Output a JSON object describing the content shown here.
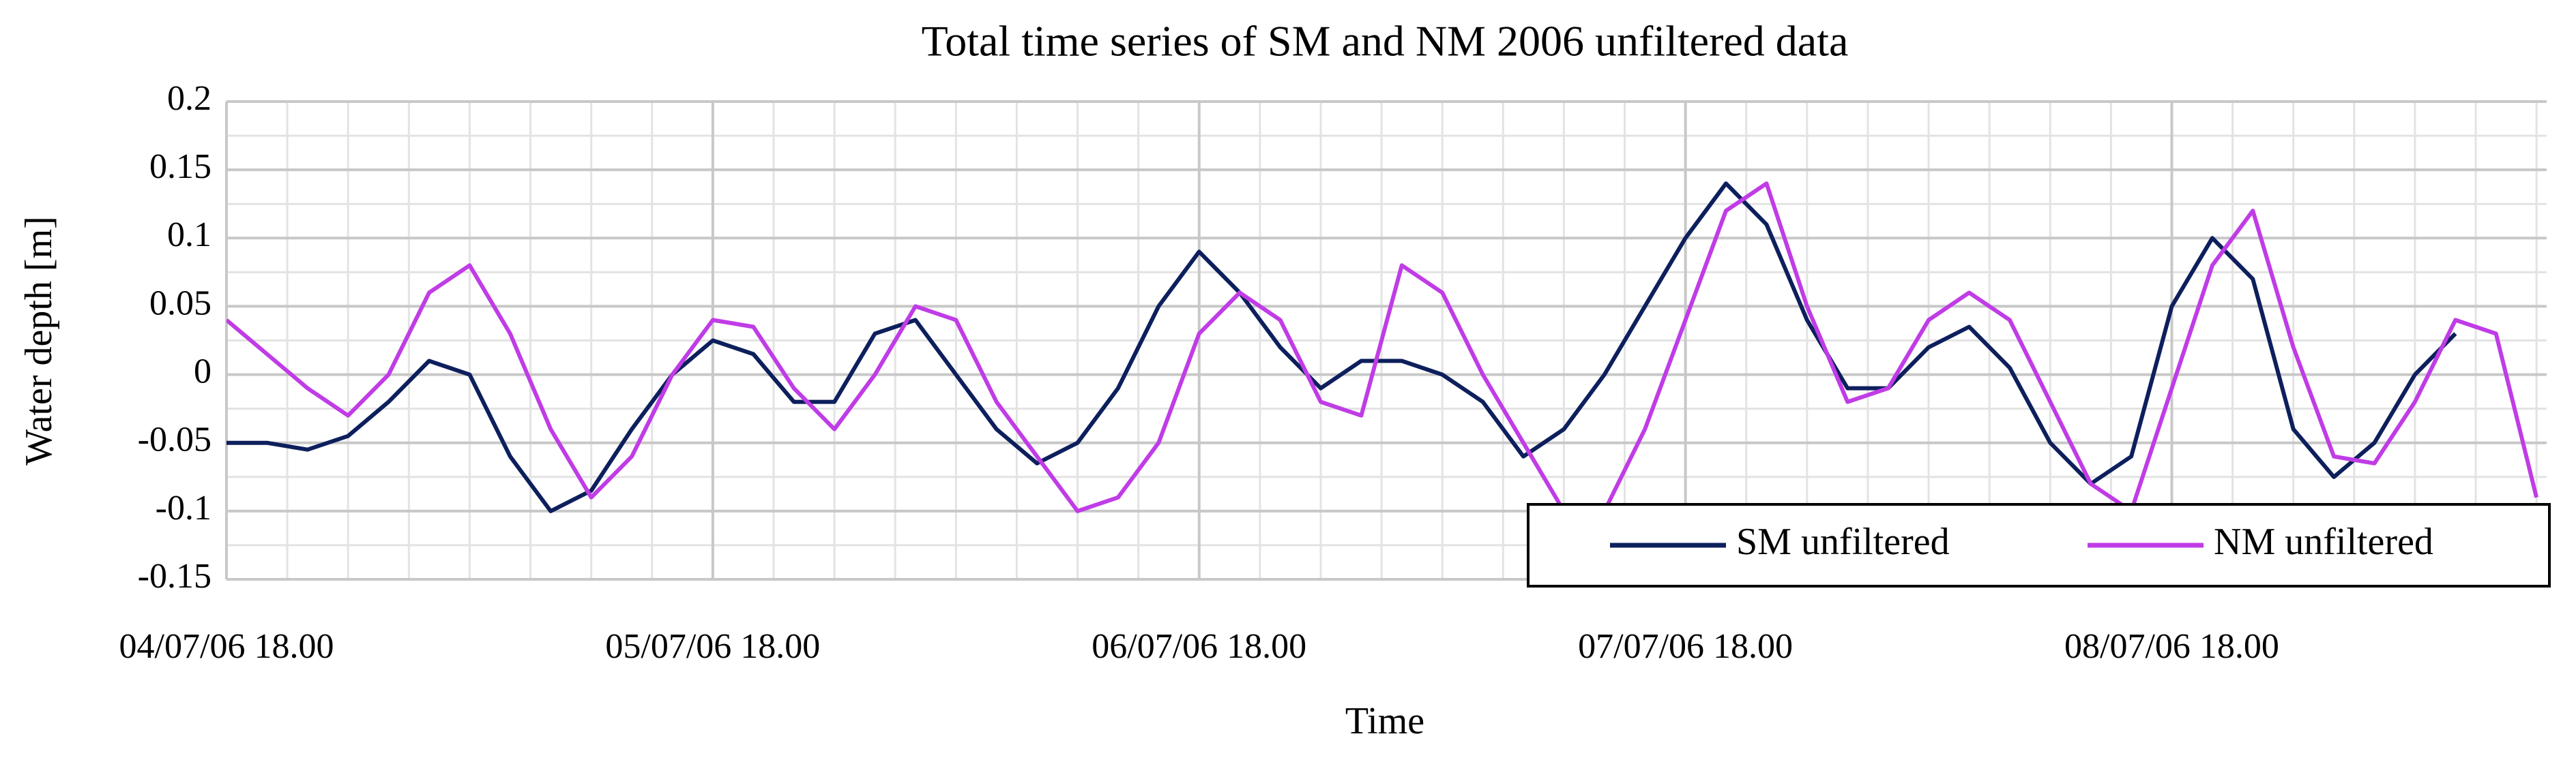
{
  "chart_data": {
    "type": "line",
    "title": "Total time series of SM and NM 2006 unfiltered data",
    "x_label": "Time",
    "y_label": "Water depth [m]",
    "x": [
      "04/07/06 18.00",
      "04/07/06 20.00",
      "04/07/06 22.00",
      "05/07/06 00.00",
      "05/07/06 02.00",
      "05/07/06 04.00",
      "05/07/06 06.00",
      "05/07/06 08.00",
      "05/07/06 10.00",
      "05/07/06 12.00",
      "05/07/06 14.00",
      "05/07/06 16.00",
      "05/07/06 18.00",
      "05/07/06 20.00",
      "05/07/06 22.00",
      "06/07/06 00.00",
      "06/07/06 02.00",
      "06/07/06 04.00",
      "06/07/06 06.00",
      "06/07/06 08.00",
      "06/07/06 10.00",
      "06/07/06 12.00",
      "06/07/06 14.00",
      "06/07/06 16.00",
      "06/07/06 18.00",
      "06/07/06 20.00",
      "06/07/06 22.00",
      "07/07/06 00.00",
      "07/07/06 02.00",
      "07/07/06 04.00",
      "07/07/06 06.00",
      "07/07/06 08.00",
      "07/07/06 10.00",
      "07/07/06 12.00",
      "07/07/06 14.00",
      "07/07/06 16.00",
      "07/07/06 18.00",
      "07/07/06 20.00",
      "07/07/06 22.00",
      "08/07/06 00.00",
      "08/07/06 02.00",
      "08/07/06 04.00",
      "08/07/06 06.00",
      "08/07/06 08.00",
      "08/07/06 10.00",
      "08/07/06 12.00",
      "08/07/06 14.00",
      "08/07/06 16.00",
      "08/07/06 18.00",
      "08/07/06 20.00",
      "08/07/06 22.00",
      "09/07/06 00.00",
      "09/07/06 02.00",
      "09/07/06 04.00",
      "09/07/06 06.00",
      "09/07/06 08.00",
      "09/07/06 10.00",
      "09/07/06 12.00"
    ],
    "series": [
      {
        "name": "SM unfiltered",
        "color": "#0d1f5c",
        "values": [
          -0.05,
          -0.05,
          -0.055,
          -0.045,
          -0.02,
          0.01,
          0.0,
          -0.06,
          -0.1,
          -0.085,
          -0.04,
          0.0,
          0.025,
          0.015,
          -0.02,
          -0.02,
          0.03,
          0.04,
          0.0,
          -0.04,
          -0.065,
          -0.05,
          -0.01,
          0.05,
          0.09,
          0.06,
          0.02,
          -0.01,
          0.01,
          0.01,
          0.0,
          -0.02,
          -0.06,
          -0.04,
          0.0,
          0.05,
          0.1,
          0.14,
          0.11,
          0.04,
          -0.01,
          -0.01,
          0.02,
          0.035,
          0.005,
          -0.05,
          -0.08,
          -0.06,
          0.05,
          0.1,
          0.07,
          -0.04,
          -0.075,
          -0.05,
          0.0,
          0.03,
          null,
          null
        ]
      },
      {
        "name": "NM unfiltered",
        "color": "#c03ce6",
        "values": [
          0.04,
          0.015,
          -0.01,
          -0.03,
          0.0,
          0.06,
          0.08,
          0.03,
          -0.04,
          -0.09,
          -0.06,
          0.0,
          0.04,
          0.035,
          -0.01,
          -0.04,
          0.0,
          0.05,
          0.04,
          -0.02,
          -0.06,
          -0.1,
          -0.09,
          -0.05,
          0.03,
          0.06,
          0.04,
          -0.02,
          -0.03,
          0.08,
          0.06,
          0.0,
          -0.05,
          -0.1,
          -0.1,
          -0.04,
          0.04,
          0.12,
          0.14,
          0.05,
          -0.02,
          -0.01,
          0.04,
          0.06,
          0.04,
          -0.02,
          -0.08,
          -0.1,
          -0.01,
          0.08,
          0.12,
          0.02,
          -0.06,
          -0.065,
          -0.02,
          0.04,
          0.03,
          -0.09
        ]
      }
    ],
    "xlim": [
      "04/07/06 18.00",
      "09/07/06 12.30"
    ],
    "xticks": [
      "04/07/06 18.00",
      "05/07/06 18.00",
      "06/07/06 18.00",
      "07/07/06 18.00",
      "08/07/06 18.00"
    ],
    "ylim": [
      -0.15,
      0.2
    ],
    "yticks": [
      -0.15,
      -0.1,
      -0.05,
      0,
      0.05,
      0.1,
      0.15,
      0.2
    ],
    "grid": true,
    "legend": "lower right"
  }
}
